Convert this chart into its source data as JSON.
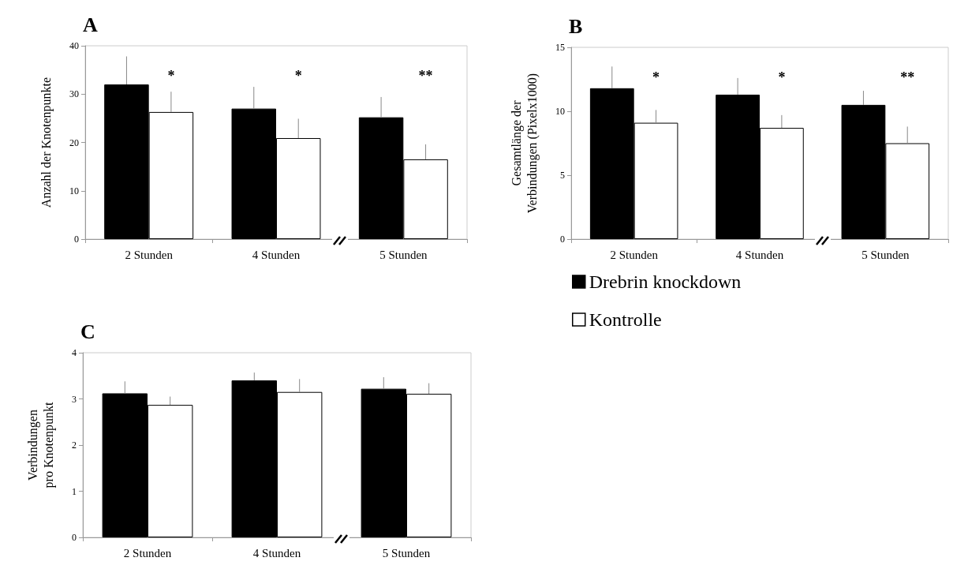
{
  "chart_data": [
    {
      "type": "bar",
      "title": "A",
      "ylabel": "Anzahl der Knotenpunkte",
      "categories": [
        "2 Stunden",
        "4 Stunden",
        "5 Stunden"
      ],
      "series": [
        {
          "color": "#000000",
          "values": [
            32,
            27,
            25.2
          ],
          "errors": [
            [
              32,
              37.8
            ],
            [
              27,
              31.5
            ],
            [
              25.2,
              29.4
            ]
          ]
        },
        {
          "color": "#ffffff",
          "values": [
            26.3,
            20.9,
            16.5
          ],
          "errors": [
            [
              26.3,
              30.5
            ],
            [
              20.9,
              24.9
            ],
            [
              16.5,
              19.6
            ]
          ]
        }
      ],
      "ylim": [
        0,
        40
      ],
      "yticks": [
        0,
        10,
        20,
        30,
        40
      ],
      "grid": false,
      "legend": false,
      "annotations": [
        "*",
        "*",
        "**"
      ]
    },
    {
      "type": "bar",
      "title": "B",
      "ylabel": "Gesamtlänge der\nVerbindungen (Pixelx1000)",
      "categories": [
        "2 Stunden",
        "4 Stunden",
        "5 Stunden"
      ],
      "series": [
        {
          "color": "#000000",
          "values": [
            11.8,
            11.3,
            10.5
          ],
          "errors": [
            [
              11.8,
              13.5
            ],
            [
              11.3,
              12.6
            ],
            [
              10.5,
              11.6
            ]
          ]
        },
        {
          "color": "#ffffff",
          "values": [
            9.1,
            8.7,
            7.5
          ],
          "errors": [
            [
              9.1,
              10.1
            ],
            [
              8.7,
              9.7
            ],
            [
              7.5,
              8.8
            ]
          ]
        }
      ],
      "ylim": [
        0,
        15
      ],
      "yticks": [
        0,
        5,
        10,
        15
      ],
      "grid": false,
      "legend": false,
      "annotations": [
        "*",
        "*",
        "**"
      ]
    },
    {
      "type": "bar",
      "title": "C",
      "ylabel": "Verbindungen\npro Knotenpunkt",
      "categories": [
        "2 Stunden",
        "4 Stunden",
        "5 Stunden"
      ],
      "series": [
        {
          "name": "Drebrin knockdown",
          "color": "#000000",
          "values": [
            3.12,
            3.4,
            3.22
          ],
          "errors": [
            [
              3.12,
              3.38
            ],
            [
              3.4,
              3.57
            ],
            [
              3.22,
              3.47
            ]
          ]
        },
        {
          "name": "Kontrolle",
          "color": "#ffffff",
          "values": [
            2.87,
            3.15,
            3.11
          ],
          "errors": [
            [
              2.87,
              3.05
            ],
            [
              3.15,
              3.43
            ],
            [
              3.11,
              3.34
            ]
          ]
        }
      ],
      "ylim": [
        0,
        4
      ],
      "yticks": [
        0,
        1,
        2,
        3,
        4
      ],
      "grid": false,
      "legend": "right"
    }
  ]
}
